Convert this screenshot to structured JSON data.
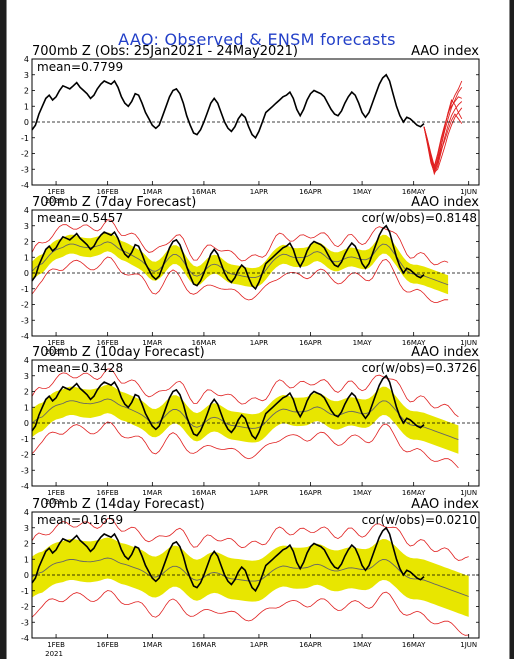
{
  "title": "AAO: Observed & ENSM forecasts",
  "colors": {
    "title": "#2340c8",
    "observed": "#000000",
    "ensemble": "#e8e600",
    "spread": "#e02020",
    "mean_line": "#666666",
    "background": "#ffffff"
  },
  "x_ticks": [
    "1FEB",
    "16FEB",
    "1MAR",
    "16MAR",
    "1APR",
    "16APR",
    "1MAY",
    "16MAY",
    "1JUN"
  ],
  "x_tick_days": [
    7,
    22,
    35,
    50,
    66,
    81,
    96,
    111,
    127
  ],
  "year_label": "2021",
  "chart_data": [
    {
      "type": "line",
      "title": "700mb Z (Obs: 25Jan2021 - 24May2021)",
      "index_label": "AAO index",
      "mean_label": "mean=0.7799",
      "ylim": [
        -4,
        4
      ],
      "yticks": [
        -4,
        -3,
        -2,
        -1,
        0,
        1,
        2,
        3,
        4
      ],
      "observed": {
        "start_day": 0,
        "values": [
          -0.5,
          -0.2,
          0.5,
          1.0,
          1.5,
          1.7,
          1.4,
          1.6,
          2.0,
          2.3,
          2.2,
          2.1,
          2.3,
          2.5,
          2.2,
          2.0,
          1.8,
          1.5,
          1.7,
          2.1,
          2.4,
          2.6,
          2.5,
          2.4,
          2.6,
          2.2,
          1.6,
          1.2,
          1.0,
          1.3,
          1.8,
          1.7,
          1.2,
          0.6,
          0.2,
          -0.2,
          -0.4,
          -0.2,
          0.4,
          1.0,
          1.6,
          2.0,
          2.1,
          1.8,
          1.2,
          0.4,
          -0.2,
          -0.7,
          -0.8,
          -0.5,
          0.0,
          0.6,
          1.2,
          1.5,
          1.2,
          0.6,
          0.0,
          -0.4,
          -0.6,
          -0.3,
          0.2,
          0.5,
          0.3,
          -0.3,
          -0.8,
          -1.0,
          -0.6,
          0.0,
          0.6,
          0.8,
          1.0,
          1.2,
          1.4,
          1.6,
          1.7,
          1.9,
          1.5,
          0.8,
          0.4,
          0.8,
          1.4,
          1.8,
          2.0,
          1.9,
          1.8,
          1.6,
          1.2,
          0.8,
          0.5,
          0.4,
          0.7,
          1.2,
          1.6,
          1.9,
          1.7,
          1.2,
          0.6,
          0.3,
          0.6,
          1.2,
          1.8,
          2.4,
          2.8,
          3.0,
          2.6,
          1.8,
          1.0,
          0.4,
          0.0,
          0.3,
          0.2,
          0.0,
          -0.2,
          -0.3,
          -0.1
        ]
      },
      "forecast_members": [
        {
          "start_day": 114,
          "values": [
            -0.3,
            -1.2,
            -2.2,
            -3.1,
            -2.4,
            -1.5,
            -0.6,
            0.2,
            0.9,
            1.4,
            1.9,
            2.2
          ]
        },
        {
          "start_day": 114,
          "values": [
            -0.3,
            -1.3,
            -2.4,
            -3.3,
            -2.8,
            -1.9,
            -1.0,
            -0.2,
            0.4,
            0.8,
            1.1,
            1.3
          ]
        },
        {
          "start_day": 114,
          "values": [
            -0.3,
            -1.1,
            -2.0,
            -2.8,
            -2.0,
            -1.0,
            -0.2,
            0.5,
            1.2,
            1.7,
            2.1,
            2.6
          ]
        },
        {
          "start_day": 114,
          "values": [
            -0.3,
            -1.4,
            -2.6,
            -3.2,
            -3.0,
            -2.3,
            -1.6,
            -0.8,
            -0.2,
            0.3,
            0.6,
            0.9
          ]
        },
        {
          "start_day": 114,
          "values": [
            -0.3,
            -1.2,
            -2.3,
            -2.9,
            -2.2,
            -1.2,
            -0.3,
            0.6,
            1.4,
            1.1,
            0.6,
            0.2
          ]
        },
        {
          "start_day": 114,
          "values": [
            -0.3,
            -1.3,
            -2.5,
            -3.2,
            -2.6,
            -1.6,
            -0.4,
            0.6,
            1.0,
            1.3,
            1.6,
            1.5
          ]
        },
        {
          "start_day": 114,
          "values": [
            -0.3,
            -1.1,
            -2.1,
            -3.0,
            -2.5,
            -1.8,
            -1.2,
            -0.5,
            0.1,
            0.5,
            0.2,
            -0.1
          ]
        }
      ]
    },
    {
      "type": "area",
      "title": "700mb Z (7day Forecast)",
      "index_label": "AAO index",
      "mean_label": "mean=0.5457",
      "corr_label": "cor(w/obs)=0.8148",
      "ylim": [
        -4,
        4
      ],
      "yticks": [
        -4,
        -3,
        -2,
        -1,
        0,
        1,
        2,
        3,
        4
      ],
      "observed": {
        "start_day": 0,
        "values": [
          -0.5,
          -0.2,
          0.5,
          1.0,
          1.5,
          1.7,
          1.4,
          1.6,
          2.0,
          2.3,
          2.2,
          2.1,
          2.3,
          2.5,
          2.2,
          2.0,
          1.8,
          1.5,
          1.7,
          2.1,
          2.4,
          2.6,
          2.5,
          2.4,
          2.6,
          2.2,
          1.6,
          1.2,
          1.0,
          1.3,
          1.8,
          1.7,
          1.2,
          0.6,
          0.2,
          -0.2,
          -0.4,
          -0.2,
          0.4,
          1.0,
          1.6,
          2.0,
          2.1,
          1.8,
          1.2,
          0.4,
          -0.2,
          -0.7,
          -0.8,
          -0.5,
          0.0,
          0.6,
          1.2,
          1.5,
          1.2,
          0.6,
          0.0,
          -0.4,
          -0.6,
          -0.3,
          0.2,
          0.5,
          0.3,
          -0.3,
          -0.8,
          -1.0,
          -0.6,
          0.0,
          0.6,
          0.8,
          1.0,
          1.2,
          1.4,
          1.6,
          1.7,
          1.9,
          1.5,
          0.8,
          0.4,
          0.8,
          1.4,
          1.8,
          2.0,
          1.9,
          1.8,
          1.6,
          1.2,
          0.8,
          0.5,
          0.4,
          0.7,
          1.2,
          1.6,
          1.9,
          1.7,
          1.2,
          0.6,
          0.3,
          0.6,
          1.2,
          1.8,
          2.4,
          2.8,
          3.0,
          2.6,
          1.8,
          1.0,
          0.4,
          0.0,
          0.3,
          0.2,
          0.0,
          -0.2,
          -0.3,
          -0.1
        ]
      },
      "forecast": {
        "start_day": 0,
        "end_day": 121,
        "offset": -0.2,
        "inner_band": 0.6,
        "outer_band": 1.2
      }
    },
    {
      "type": "area",
      "title": "700mb Z (10day Forecast)",
      "index_label": "AAO index",
      "mean_label": "mean=0.3428",
      "corr_label": "cor(w/obs)=0.3726",
      "ylim": [
        -4,
        4
      ],
      "yticks": [
        -4,
        -3,
        -2,
        -1,
        0,
        1,
        2,
        3,
        4
      ],
      "observed": {
        "start_day": 0,
        "values": [
          -0.5,
          -0.2,
          0.5,
          1.0,
          1.5,
          1.7,
          1.4,
          1.6,
          2.0,
          2.3,
          2.2,
          2.1,
          2.3,
          2.5,
          2.2,
          2.0,
          1.8,
          1.5,
          1.7,
          2.1,
          2.4,
          2.6,
          2.5,
          2.4,
          2.6,
          2.2,
          1.6,
          1.2,
          1.0,
          1.3,
          1.8,
          1.7,
          1.2,
          0.6,
          0.2,
          -0.2,
          -0.4,
          -0.2,
          0.4,
          1.0,
          1.6,
          2.0,
          2.1,
          1.8,
          1.2,
          0.4,
          -0.2,
          -0.7,
          -0.8,
          -0.5,
          0.0,
          0.6,
          1.2,
          1.5,
          1.2,
          0.6,
          0.0,
          -0.4,
          -0.6,
          -0.3,
          0.2,
          0.5,
          0.3,
          -0.3,
          -0.8,
          -1.0,
          -0.6,
          0.0,
          0.6,
          0.8,
          1.0,
          1.2,
          1.4,
          1.6,
          1.7,
          1.9,
          1.5,
          0.8,
          0.4,
          0.8,
          1.4,
          1.8,
          2.0,
          1.9,
          1.8,
          1.6,
          1.2,
          0.8,
          0.5,
          0.4,
          0.7,
          1.2,
          1.6,
          1.9,
          1.7,
          1.2,
          0.6,
          0.3,
          0.6,
          1.2,
          1.8,
          2.4,
          2.8,
          3.0,
          2.6,
          1.8,
          1.0,
          0.4,
          0.0,
          0.3,
          0.2,
          0.0,
          -0.2,
          -0.3,
          -0.1
        ]
      },
      "forecast": {
        "start_day": 0,
        "end_day": 124,
        "offset": -0.5,
        "inner_band": 0.9,
        "outer_band": 1.7
      }
    },
    {
      "type": "area",
      "title": "700mb Z (14day Forecast)",
      "index_label": "AAO index",
      "mean_label": "mean=0.1659",
      "corr_label": "cor(w/obs)=0.0210",
      "ylim": [
        -4,
        4
      ],
      "yticks": [
        -4,
        -3,
        -2,
        -1,
        0,
        1,
        2,
        3,
        4
      ],
      "observed": {
        "start_day": 0,
        "values": [
          -0.5,
          -0.2,
          0.5,
          1.0,
          1.5,
          1.7,
          1.4,
          1.6,
          2.0,
          2.3,
          2.2,
          2.1,
          2.3,
          2.5,
          2.2,
          2.0,
          1.8,
          1.5,
          1.7,
          2.1,
          2.4,
          2.6,
          2.5,
          2.4,
          2.6,
          2.2,
          1.6,
          1.2,
          1.0,
          1.3,
          1.8,
          1.7,
          1.2,
          0.6,
          0.2,
          -0.2,
          -0.4,
          -0.2,
          0.4,
          1.0,
          1.6,
          2.0,
          2.1,
          1.8,
          1.2,
          0.4,
          -0.2,
          -0.7,
          -0.8,
          -0.5,
          0.0,
          0.6,
          1.2,
          1.5,
          1.2,
          0.6,
          0.0,
          -0.4,
          -0.6,
          -0.3,
          0.2,
          0.5,
          0.3,
          -0.3,
          -0.8,
          -1.0,
          -0.6,
          0.0,
          0.6,
          0.8,
          1.0,
          1.2,
          1.4,
          1.6,
          1.7,
          1.9,
          1.5,
          0.8,
          0.4,
          0.8,
          1.4,
          1.8,
          2.0,
          1.9,
          1.8,
          1.6,
          1.2,
          0.8,
          0.5,
          0.4,
          0.7,
          1.2,
          1.6,
          1.9,
          1.7,
          1.2,
          0.6,
          0.3,
          0.6,
          1.2,
          1.8,
          2.4,
          2.8,
          3.0,
          2.6,
          1.8,
          1.0,
          0.4,
          0.0,
          0.3,
          0.2,
          0.0,
          -0.2,
          -0.3,
          -0.1
        ]
      },
      "forecast": {
        "start_day": 0,
        "end_day": 127,
        "offset": -0.8,
        "inner_band": 1.3,
        "outer_band": 2.3
      }
    }
  ]
}
